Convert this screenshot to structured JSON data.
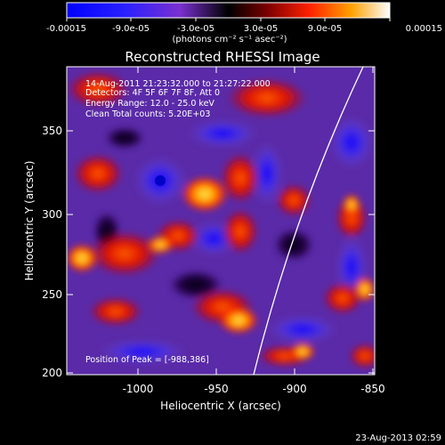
{
  "colorbar": {
    "tick_labels": [
      "-0.00015",
      "-9.0e-05",
      "-3.0e-05",
      "3.0e-05",
      "9.0e-05",
      "0.00015"
    ],
    "unit_text": "(photons cm⁻² s⁻¹ asec⁻²)"
  },
  "title": "Reconstructed RHESSI Image",
  "info": {
    "time_range": "14-Aug-2011 21:23:32.000 to 21:27:22.000",
    "detectors": "Detectors: 4F 5F 6F 7F 8F, Att 0",
    "energy": "Energy Range: 12.0 - 25.0 keV",
    "clean": "Clean    Total counts: 5.20E+03",
    "peak": "Position of Peak = [-988,386]"
  },
  "axes": {
    "xlabel": "Heliocentric X (arcsec)",
    "ylabel": "Heliocentric Y (arcsec)",
    "xticks": [
      "-1000",
      "-950",
      "-900",
      "-850"
    ],
    "yticks": [
      "350",
      "300",
      "250",
      "200"
    ]
  },
  "footer_date": "23-Aug-2013 02:59",
  "colors": {
    "background": "#000000",
    "text": "#ffffff",
    "limb": "#ffffff"
  }
}
